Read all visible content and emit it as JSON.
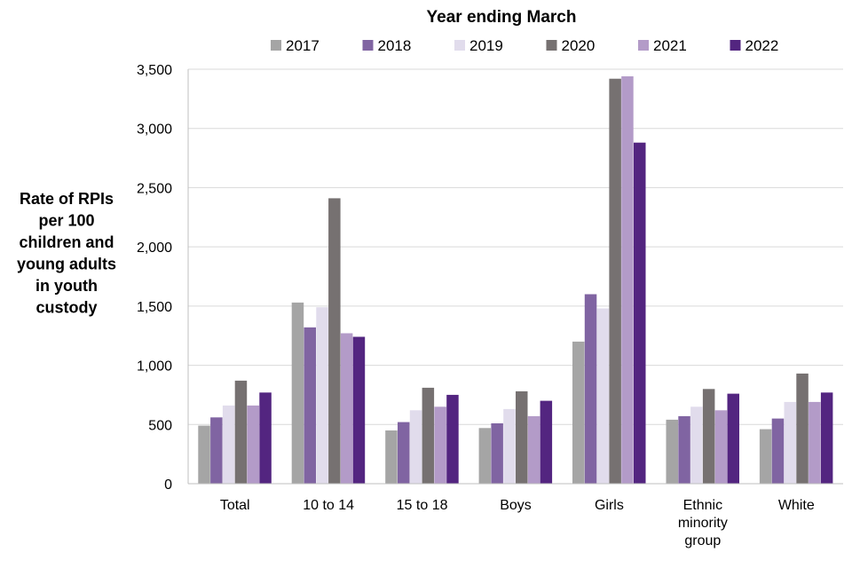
{
  "chart_data": {
    "type": "bar",
    "legend_title": "Year ending March",
    "ylabel_lines": [
      "Rate of RPIs",
      "per 100",
      "children and",
      "young adults",
      "in youth",
      "custody"
    ],
    "xlabel": "",
    "ylim": [
      0,
      3500
    ],
    "yticks": [
      0,
      500,
      1000,
      1500,
      2000,
      2500,
      3000,
      3500
    ],
    "ytick_labels": [
      "0",
      "500",
      "1,000",
      "1,500",
      "2,000",
      "2,500",
      "3,000",
      "3,500"
    ],
    "grid": true,
    "legend_position": "top",
    "categories": [
      [
        "Total"
      ],
      [
        "10 to 14"
      ],
      [
        "15 to 18"
      ],
      [
        "Boys"
      ],
      [
        "Girls"
      ],
      [
        "Ethnic",
        "minority",
        "group"
      ],
      [
        "White"
      ]
    ],
    "series": [
      {
        "name": "2017",
        "color": "#a5a5a5",
        "values": [
          490,
          1530,
          450,
          470,
          1200,
          540,
          460
        ]
      },
      {
        "name": "2018",
        "color": "#8064a2",
        "values": [
          560,
          1320,
          520,
          510,
          1600,
          570,
          550
        ]
      },
      {
        "name": "2019",
        "color": "#e1dcec",
        "values": [
          660,
          1490,
          620,
          630,
          1480,
          650,
          690
        ]
      },
      {
        "name": "2020",
        "color": "#767171",
        "values": [
          870,
          2410,
          810,
          780,
          3420,
          800,
          930
        ]
      },
      {
        "name": "2021",
        "color": "#b39bc8",
        "values": [
          660,
          1270,
          650,
          570,
          3440,
          620,
          690
        ]
      },
      {
        "name": "2022",
        "color": "#532580",
        "values": [
          770,
          1240,
          750,
          700,
          2880,
          760,
          770
        ]
      }
    ]
  }
}
